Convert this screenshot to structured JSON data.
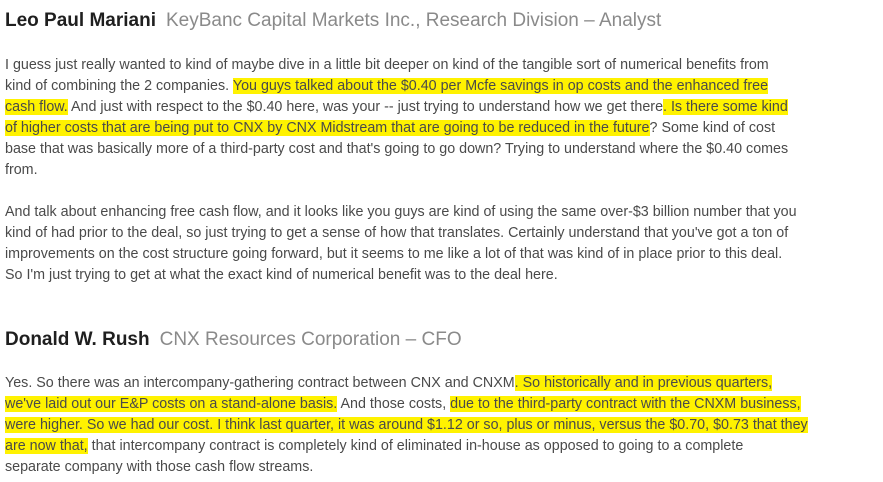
{
  "speakers": [
    {
      "name": "Leo Paul Mariani",
      "affiliation": "KeyBanc Capital Markets Inc., Research Division – Analyst"
    },
    {
      "name": "Donald W. Rush",
      "affiliation": "CNX Resources Corporation – CFO"
    }
  ],
  "colors": {
    "highlight": "#fff200",
    "name_text": "#1f1f1f",
    "affiliation_text": "#8a8a8a",
    "body_text": "#4a4a4a"
  },
  "p1": {
    "l1": "I guess just really wanted to kind of maybe dive in a little bit deeper on kind of the tangible sort of numerical benefits from",
    "l2a": "kind of combining the 2 companies. ",
    "l2h": "You guys talked about the $0.40 per Mcfe savings in op costs and the enhanced free",
    "l3h": "cash flow.",
    "l3a": " And just with respect to the $0.40 here, was your -- just trying to understand how we get there",
    "l3h2": ". Is there some kind",
    "l4h": "of higher costs that are being put to CNX by CNX Midstream that are going to be reduced in the future",
    "l4a": "? Some kind of cost",
    "l5": "base that was basically more of a third-party cost and that's going to go down? Trying to understand where the $0.40 comes",
    "l6": "from."
  },
  "p2": {
    "l1": "And talk about enhancing free cash flow, and it looks like you guys are kind of using the same over-$3 billion number that you",
    "l2": "kind of had prior to the deal, so just trying to get a sense of how that translates. Certainly understand that you've got a ton of",
    "l3": "improvements on the cost structure going forward, but it seems to me like a lot of that was kind of in place prior to this deal.",
    "l4": "So I'm just trying to get at what the exact kind of numerical benefit was to the deal here."
  },
  "p3": {
    "l1a": "Yes. So there was an intercompany-gathering contract between CNX and CNXM",
    "l1h": ". So historically and in previous quarters,",
    "l2h": "we've laid out our E&P costs on a stand-alone basis.",
    "l2a": " And those costs, ",
    "l2h2": "due to the third-party contract with the CNXM business,",
    "l3h": "were higher. So we had our cost. I think last quarter, it was around $1.12 or so, plus or minus, versus the $0.70, $0.73 that they",
    "l4h": "are now that,",
    "l4a": " that intercompany contract is completely kind of eliminated in-house as opposed to going to a complete",
    "l5": "separate company with those cash flow streams."
  }
}
